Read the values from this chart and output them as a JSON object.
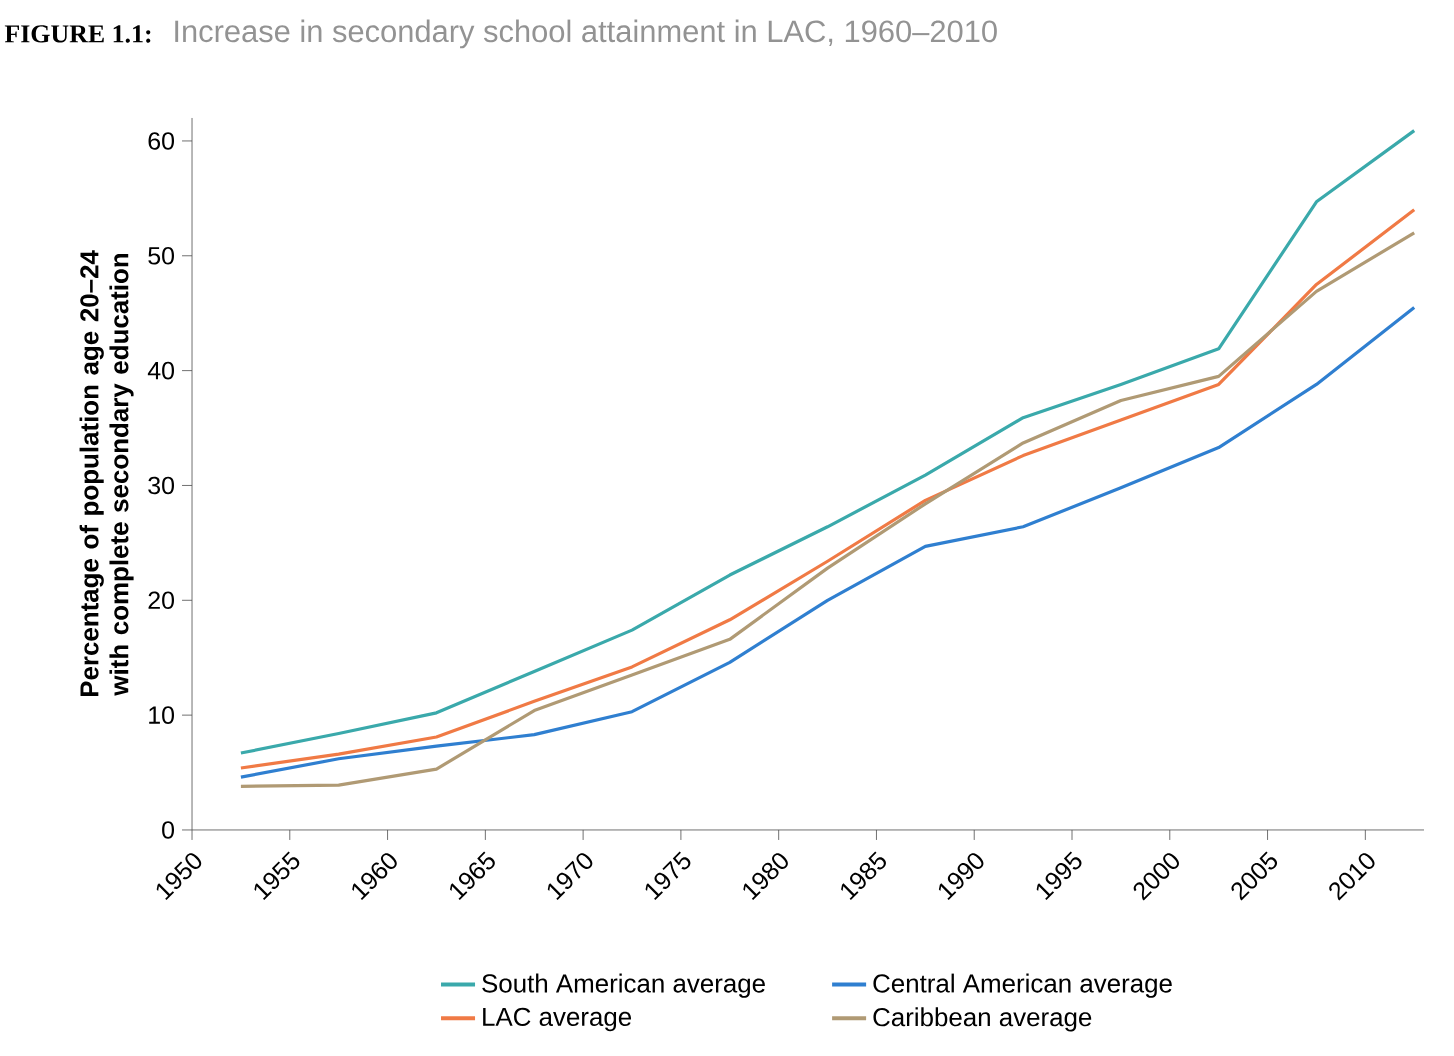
{
  "chart_data": {
    "type": "line",
    "title": "FIGURE 1.1:",
    "subtitle": "Increase in secondary school attainment in LAC, 1960–2010",
    "ylabel": "Percentage of population age 20–24 with complete secondary education",
    "x": [
      1952.5,
      1957.5,
      1962.5,
      1967.5,
      1972.5,
      1977.5,
      1982.5,
      1987.5,
      1992.5,
      1997.5,
      2002.5,
      2007.5,
      2012.5
    ],
    "series": [
      {
        "name": "South American average",
        "color": "#3aa9ab",
        "values": [
          6.7,
          8.4,
          10.2,
          13.8,
          17.4,
          22.2,
          26.4,
          30.9,
          35.9,
          38.8,
          41.9,
          54.7,
          60.9
        ]
      },
      {
        "name": "Central American average",
        "color": "#2f7fd0",
        "values": [
          4.6,
          6.2,
          7.3,
          8.3,
          10.3,
          14.6,
          20.0,
          24.7,
          26.4,
          29.8,
          33.3,
          38.8,
          45.5
        ]
      },
      {
        "name": "LAC average",
        "color": "#f07a45",
        "values": [
          5.4,
          6.6,
          8.1,
          11.2,
          14.2,
          18.3,
          23.4,
          28.7,
          32.6,
          35.7,
          38.8,
          47.5,
          54.0
        ]
      },
      {
        "name": "Caribbean average",
        "color": "#b09a74",
        "values": [
          3.8,
          3.9,
          5.3,
          10.4,
          13.5,
          16.6,
          22.8,
          28.4,
          33.7,
          37.4,
          39.5,
          46.9,
          52.0
        ]
      }
    ],
    "xlim": [
      1950,
      2013
    ],
    "ylim": [
      0,
      62
    ],
    "xticks": [
      1950,
      1955,
      1960,
      1965,
      1970,
      1975,
      1980,
      1985,
      1990,
      1995,
      2000,
      2005,
      2010
    ],
    "yticks": [
      0,
      10,
      20,
      30,
      40,
      50,
      60
    ],
    "grid": false,
    "legend": "bottom",
    "marker": "none",
    "line_style": "solid"
  }
}
